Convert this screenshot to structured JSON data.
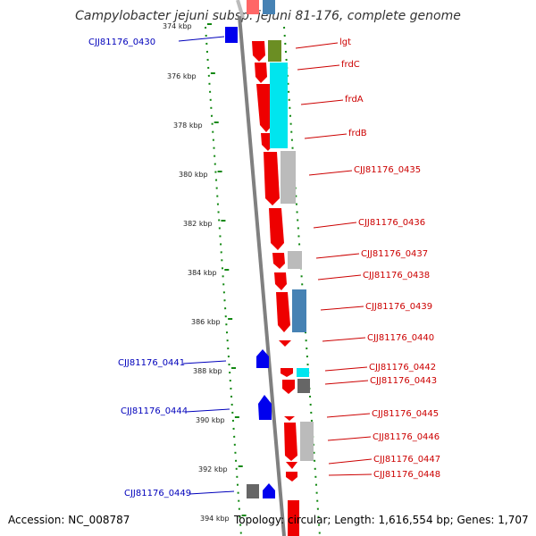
{
  "title": "Campylobacter jejuni subsp. jejuni 81-176, complete genome",
  "footer": {
    "accession": "Accession: NC_008787",
    "summary": "Topology: circular; Length: 1,616,554 bp; Genes: 1,707"
  },
  "scale": [
    "374 kbp",
    "376 kbp",
    "378 kbp",
    "380 kbp",
    "382 kbp",
    "384 kbp",
    "386 kbp",
    "388 kbp",
    "390 kbp",
    "392 kbp",
    "394 kbp"
  ],
  "colors": {
    "forward_cds": "#ee0000",
    "reverse_cds": "#0000ee",
    "forward_label": "#cc0000",
    "reverse_label": "#0000bb",
    "cog_green": "#6b8e23",
    "cog_cyan": "#00e5ee",
    "cog_gray": "#bbbbbb",
    "cog_steelblue": "#4682b4",
    "cog_darkgray": "#666666",
    "backbone": "#808080",
    "tick": "#118811"
  },
  "forward_genes": [
    "lgt",
    "frdC",
    "frdA",
    "frdB",
    "CJJ81176_0435",
    "CJJ81176_0436",
    "CJJ81176_0437",
    "CJJ81176_0438",
    "CJJ81176_0439",
    "CJJ81176_0440",
    "CJJ81176_0442",
    "CJJ81176_0443",
    "CJJ81176_0445",
    "CJJ81176_0446",
    "CJJ81176_0447",
    "CJJ81176_0448"
  ],
  "reverse_genes": [
    "CJJ81176_0430",
    "CJJ81176_0441",
    "CJJ81176_0444",
    "CJJ81176_0449"
  ]
}
